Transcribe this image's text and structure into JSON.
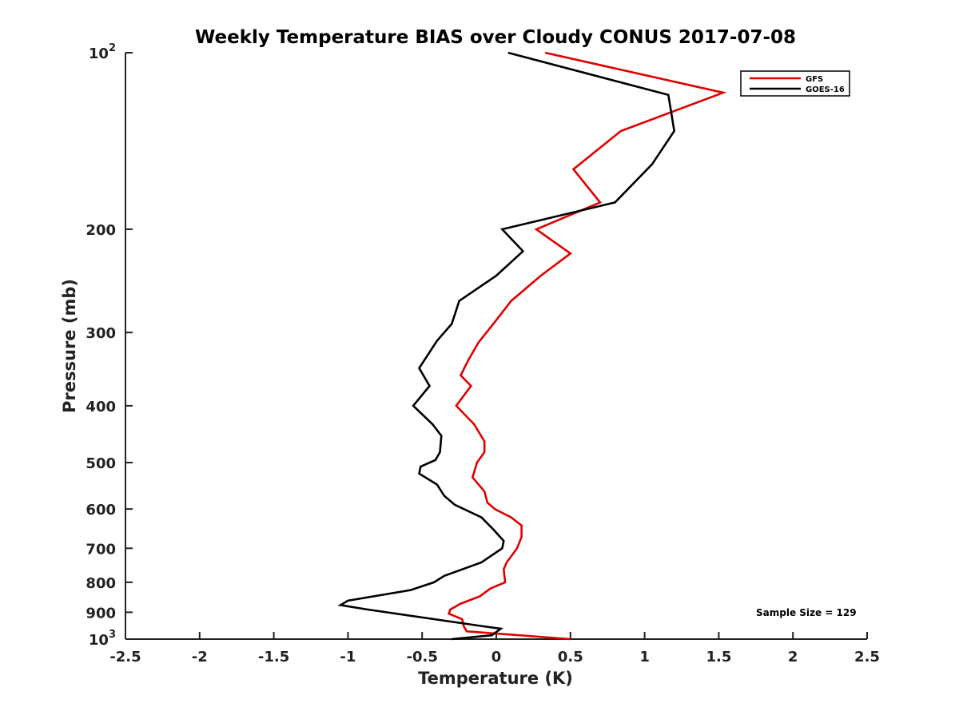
{
  "chart_data": {
    "type": "line",
    "title": "Weekly Temperature BIAS over Cloudy CONUS 2017-07-08",
    "xlabel": "Temperature (K)",
    "ylabel": "Pressure (mb)",
    "xlim": [
      -2.5,
      2.5
    ],
    "ylim": [
      100,
      1000
    ],
    "y_scale": "log",
    "y_reversed": true,
    "grid": false,
    "legend_position": "top-right",
    "x_ticks": [
      -2.5,
      -2,
      -1.5,
      -1,
      -0.5,
      0,
      0.5,
      1,
      1.5,
      2,
      2.5
    ],
    "x_tick_labels": [
      "-2.5",
      "-2",
      "-1.5",
      "-1",
      "-0.5",
      "0",
      "0.5",
      "1",
      "1.5",
      "2",
      "2.5"
    ],
    "y_ticks": [
      {
        "value": 100,
        "base": "10",
        "exp": "2"
      },
      {
        "value": 200,
        "label": "200"
      },
      {
        "value": 300,
        "label": "300"
      },
      {
        "value": 400,
        "label": "400"
      },
      {
        "value": 500,
        "label": "500"
      },
      {
        "value": 600,
        "label": "600"
      },
      {
        "value": 700,
        "label": "700"
      },
      {
        "value": 800,
        "label": "800"
      },
      {
        "value": 900,
        "label": "900"
      },
      {
        "value": 1000,
        "base": "10",
        "exp": "3"
      }
    ],
    "annotation": "Sample Size = 129",
    "series": [
      {
        "name": "GFS",
        "color": "#e00000",
        "points": [
          [
            0.33,
            100
          ],
          [
            1.53,
            117
          ],
          [
            0.84,
            136
          ],
          [
            0.52,
            158
          ],
          [
            0.7,
            180
          ],
          [
            0.27,
            200
          ],
          [
            0.5,
            220
          ],
          [
            0.3,
            240
          ],
          [
            0.1,
            265
          ],
          [
            -0.02,
            290
          ],
          [
            -0.12,
            312
          ],
          [
            -0.19,
            335
          ],
          [
            -0.24,
            355
          ],
          [
            -0.17,
            370
          ],
          [
            -0.27,
            400
          ],
          [
            -0.15,
            430
          ],
          [
            -0.08,
            460
          ],
          [
            -0.08,
            480
          ],
          [
            -0.13,
            500
          ],
          [
            -0.16,
            530
          ],
          [
            -0.08,
            560
          ],
          [
            -0.06,
            585
          ],
          [
            -0.01,
            600
          ],
          [
            0.1,
            620
          ],
          [
            0.17,
            640
          ],
          [
            0.17,
            670
          ],
          [
            0.14,
            700
          ],
          [
            0.07,
            740
          ],
          [
            0.05,
            760
          ],
          [
            0.06,
            800
          ],
          [
            -0.04,
            820
          ],
          [
            -0.11,
            845
          ],
          [
            -0.24,
            870
          ],
          [
            -0.31,
            890
          ],
          [
            -0.32,
            905
          ],
          [
            -0.23,
            925
          ],
          [
            -0.22,
            950
          ],
          [
            -0.2,
            970
          ],
          [
            0.5,
            1000
          ]
        ]
      },
      {
        "name": "GOES-16",
        "color": "#000000",
        "points": [
          [
            0.08,
            100
          ],
          [
            1.16,
            118
          ],
          [
            1.2,
            136
          ],
          [
            1.05,
            155
          ],
          [
            0.8,
            180
          ],
          [
            0.04,
            200
          ],
          [
            0.18,
            218
          ],
          [
            0.0,
            240
          ],
          [
            -0.25,
            265
          ],
          [
            -0.3,
            290
          ],
          [
            -0.4,
            310
          ],
          [
            -0.52,
            345
          ],
          [
            -0.45,
            370
          ],
          [
            -0.56,
            400
          ],
          [
            -0.43,
            430
          ],
          [
            -0.37,
            450
          ],
          [
            -0.38,
            480
          ],
          [
            -0.41,
            495
          ],
          [
            -0.51,
            508
          ],
          [
            -0.52,
            522
          ],
          [
            -0.4,
            545
          ],
          [
            -0.35,
            570
          ],
          [
            -0.28,
            590
          ],
          [
            -0.1,
            620
          ],
          [
            -0.02,
            650
          ],
          [
            0.05,
            680
          ],
          [
            0.04,
            700
          ],
          [
            -0.1,
            740
          ],
          [
            -0.35,
            780
          ],
          [
            -0.42,
            800
          ],
          [
            -0.58,
            825
          ],
          [
            -1.0,
            860
          ],
          [
            -1.05,
            875
          ],
          [
            -0.87,
            890
          ],
          [
            -0.1,
            950
          ],
          [
            0.03,
            960
          ],
          [
            -0.03,
            985
          ],
          [
            -0.3,
            1000
          ]
        ]
      }
    ]
  }
}
